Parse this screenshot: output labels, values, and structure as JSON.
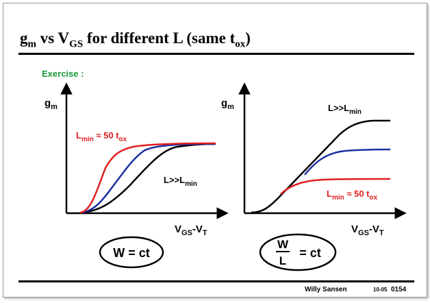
{
  "title": {
    "gm_main": "g",
    "gm_sub": "m",
    "vs": " vs V",
    "vgs_sub": "GS",
    "rest": " for different L (same t",
    "tox_sub": "ox",
    "close": ")"
  },
  "exercise_label": "Exercise :",
  "left_plot": {
    "y_label": {
      "main": "g",
      "sub": "m"
    },
    "x_label": {
      "v1": "V",
      "v1_sub": "GS",
      "mid": "-V",
      "v2_sub": "T"
    },
    "label_lmin": {
      "main": "L",
      "sub": "min",
      "mid": " ≈ 50 t",
      "sub2": "ox"
    },
    "label_llarge": {
      "main": "L>>L",
      "sub": "min"
    },
    "condition": "W = ct",
    "colors": {
      "lmin": "#e02020",
      "mid": "#1a2fa0",
      "large": "#000000"
    }
  },
  "right_plot": {
    "y_label": {
      "main": "g",
      "sub": "m"
    },
    "x_label": {
      "v1": "V",
      "v1_sub": "GS",
      "mid": "-V",
      "v2_sub": "T"
    },
    "label_lmin": {
      "main": "L",
      "sub": "min",
      "mid": " ≈ 50 t",
      "sub2": "ox"
    },
    "label_llarge": {
      "main": "L>>L",
      "sub": "min"
    },
    "condition": {
      "num": "W",
      "den": "L",
      "rest": "= ct"
    },
    "colors": {
      "lmin": "#e02020",
      "mid": "#1a2fa0",
      "large": "#000000"
    }
  },
  "footer": {
    "author": "Willy Sansen",
    "code": "10-05",
    "page": "0154"
  }
}
